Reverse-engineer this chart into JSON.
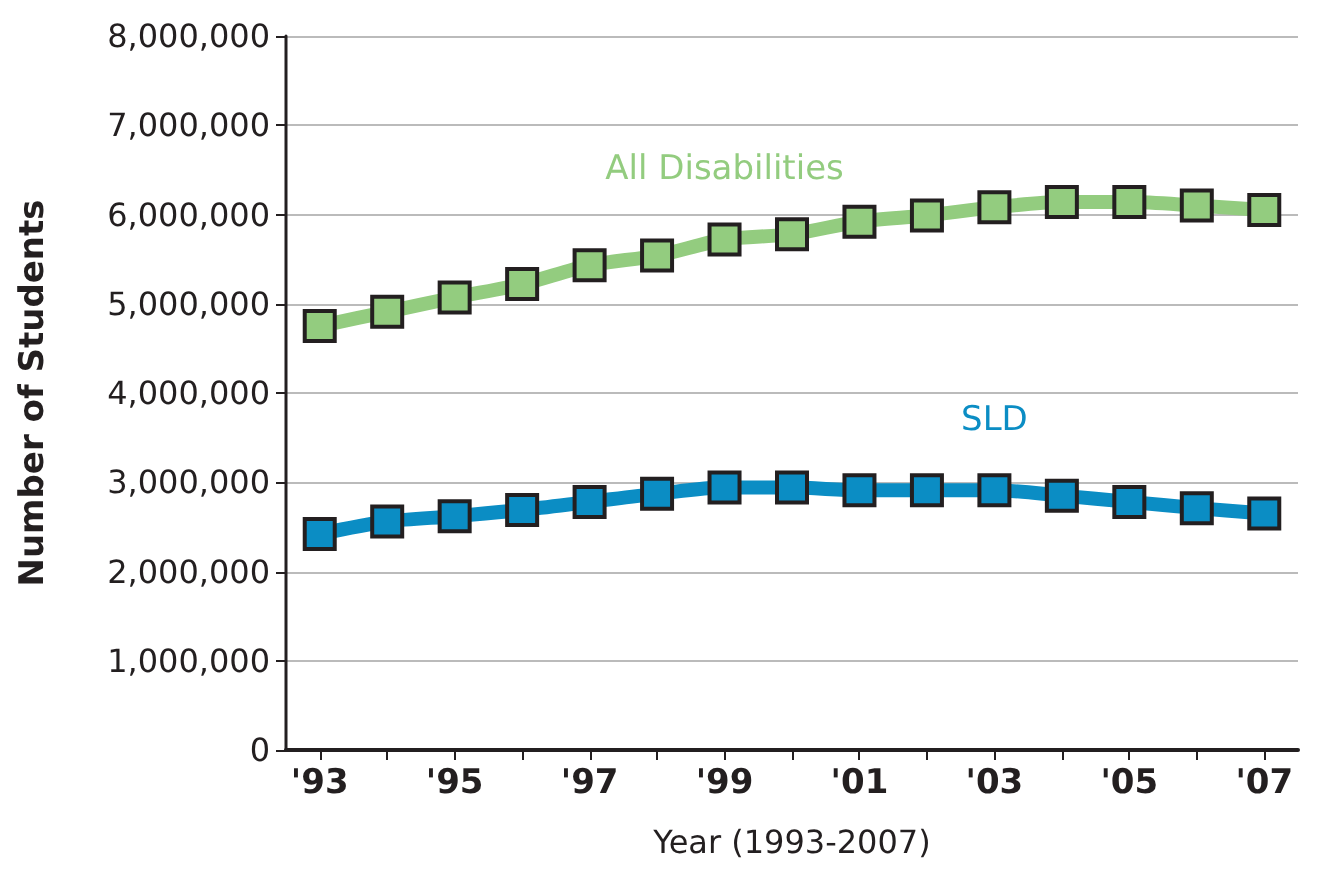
{
  "chart_data": {
    "type": "line",
    "xlabel": "Year (1993-2007)",
    "ylabel": "Number of Students",
    "categories": [
      "'93",
      null,
      "'95",
      null,
      "'97",
      null,
      "'99",
      null,
      "'01",
      null,
      "'03",
      null,
      "'05",
      null,
      "'07"
    ],
    "series": [
      {
        "name": "All Disabilities",
        "color": "#93cc7f",
        "values": [
          4750000,
          4910000,
          5070000,
          5220000,
          5430000,
          5540000,
          5720000,
          5780000,
          5920000,
          5990000,
          6080000,
          6140000,
          6140000,
          6100000,
          6050000
        ]
      },
      {
        "name": "SLD",
        "color": "#0b8dc4",
        "values": [
          2420000,
          2560000,
          2620000,
          2690000,
          2780000,
          2870000,
          2940000,
          2940000,
          2910000,
          2910000,
          2910000,
          2850000,
          2780000,
          2710000,
          2650000
        ]
      }
    ],
    "ylim": [
      0,
      8000000
    ],
    "yticks": [
      0,
      {
        "value": 1000000,
        "label": "1,000,000"
      },
      {
        "value": 2000000,
        "label": "2,000,000"
      },
      {
        "value": 3000000,
        "label": "3,000,000"
      },
      {
        "value": 4000000,
        "label": "4,000,000"
      },
      {
        "value": 5000000,
        "label": "5,000,000"
      },
      {
        "value": 6000000,
        "label": "6,000,000"
      },
      {
        "value": 7000000,
        "label": "7,000,000"
      },
      {
        "value": 8000000,
        "label": "8,000,000"
      }
    ],
    "grid": "y",
    "legend": false,
    "marker": "square",
    "line_style": "solid"
  }
}
